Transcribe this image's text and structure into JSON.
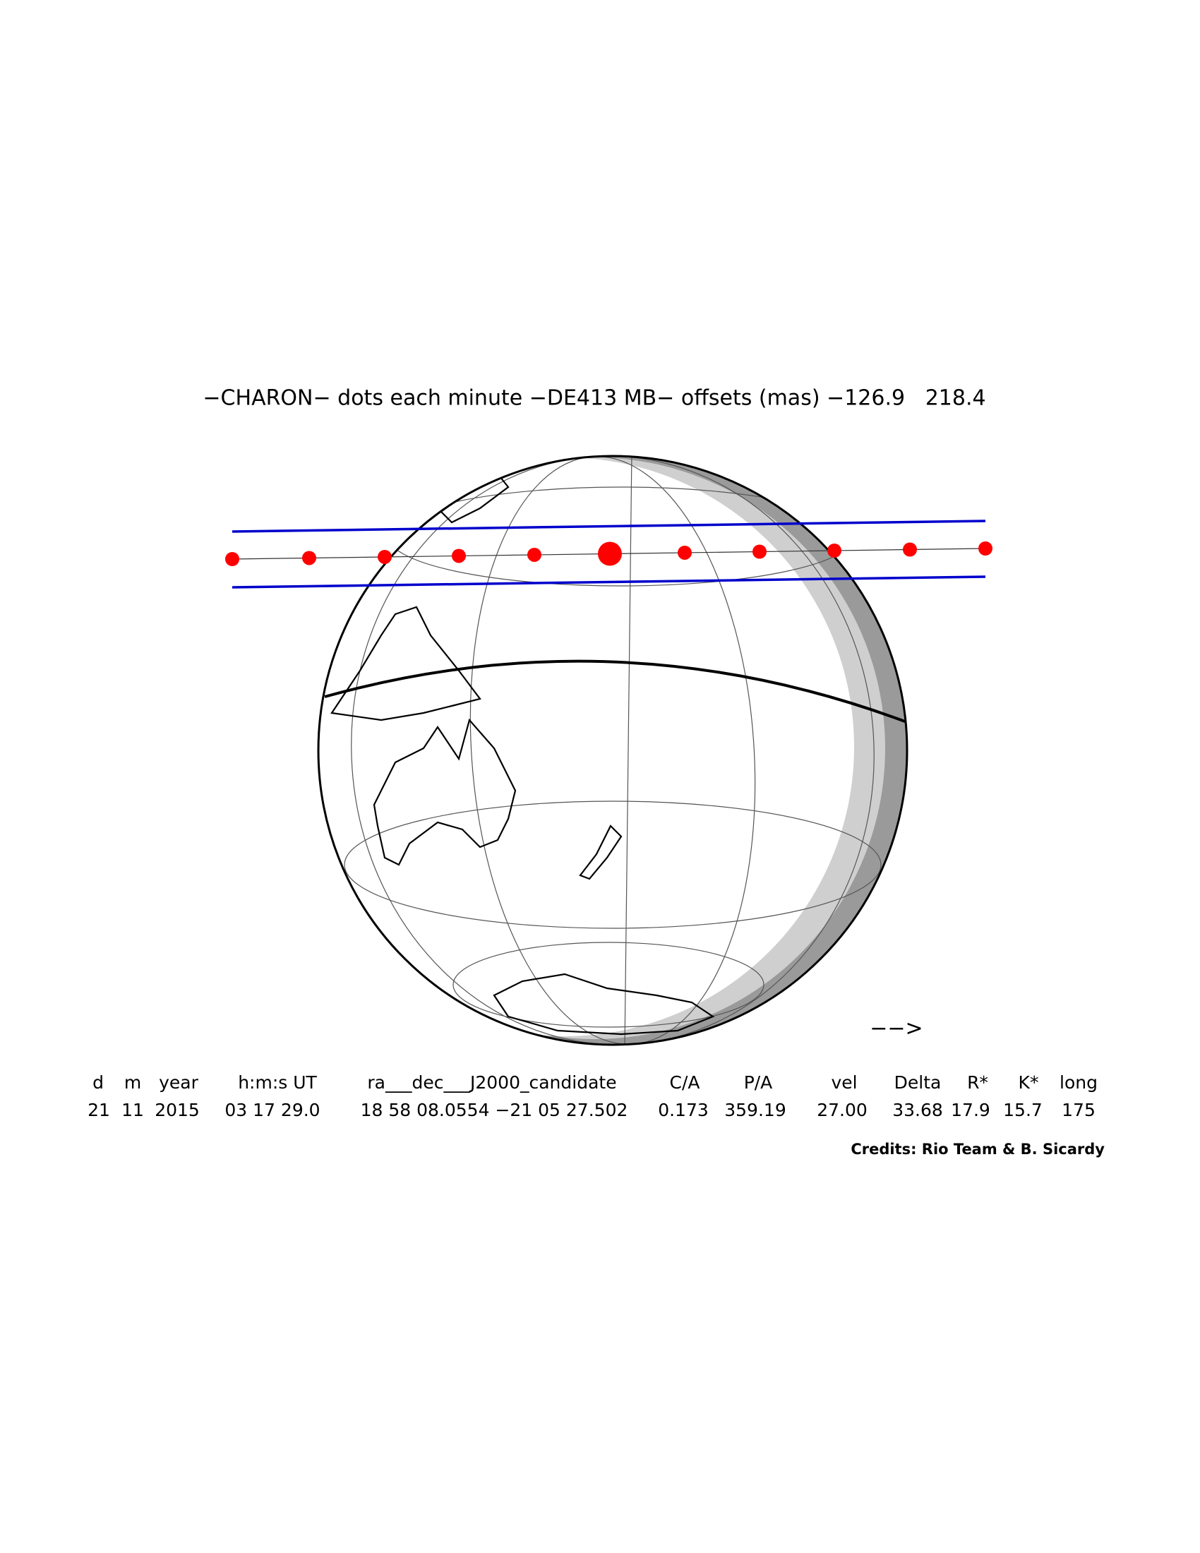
{
  "title": "−CHARON− dots each minute −DE413 MB− offsets (mas) −126.9   218.4",
  "table": {
    "header": [
      "d",
      "m",
      "year",
      "h:m:s UT",
      "ra___dec___J2000_candidate",
      "C/A",
      "P/A",
      "vel",
      "Delta",
      "R*",
      "K*",
      "long"
    ],
    "rows": [
      [
        "21",
        "11",
        "2015",
        "03 17 29.0",
        "18 58 08.0554 −21 05 27.502",
        "0.173",
        "359.19",
        "27.00",
        "33.68",
        "17.9",
        "15.7",
        "175"
      ]
    ]
  },
  "direction_label": "−−>",
  "credits": "Credits: Rio Team & B. Sicardy"
}
